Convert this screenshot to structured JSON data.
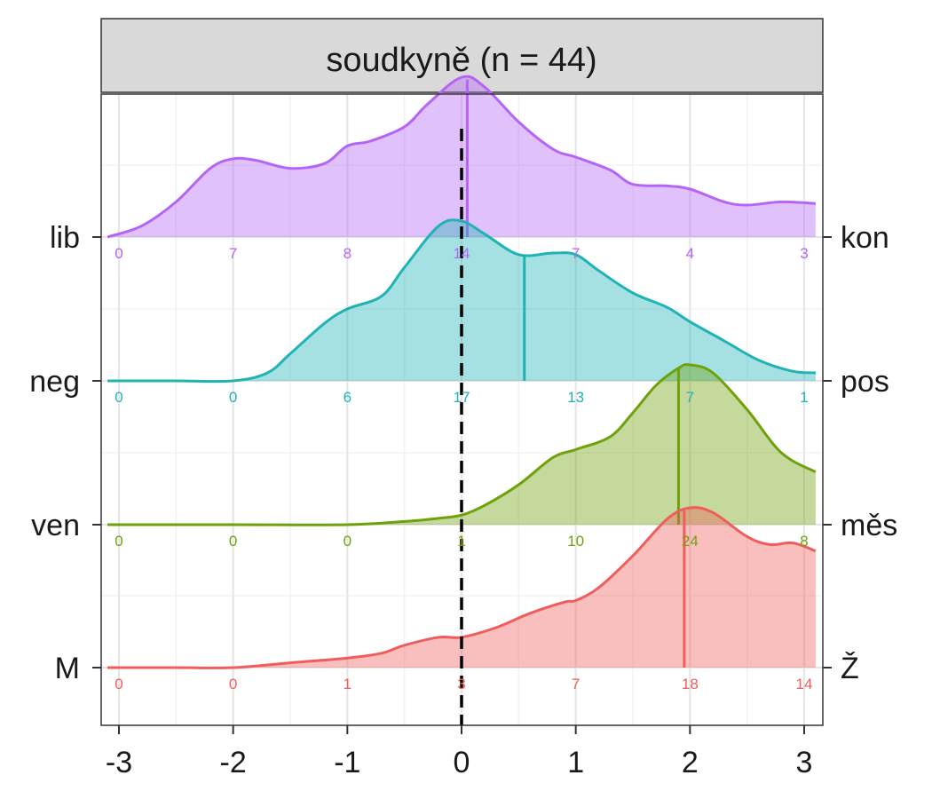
{
  "chart_data": {
    "type": "ridgeline-density",
    "title": "soudkyně (n = 44)",
    "xlabel": "",
    "ylabel": "",
    "xlim": [
      -3.1,
      3.1
    ],
    "xticks": [
      -3,
      -2,
      -1,
      0,
      1,
      2,
      3
    ],
    "xtick_labels": [
      "-3",
      "-2",
      "-1",
      "0",
      "1",
      "2",
      "3"
    ],
    "reference_line_x": 0,
    "grid": true,
    "count_positions": [
      -3,
      -2,
      -1,
      0,
      1,
      2,
      3
    ],
    "rows": [
      {
        "left_label": "lib",
        "right_label": "kon",
        "color": "#B565F5",
        "counts": [
          "0",
          "7",
          "8",
          "14",
          "7",
          "4",
          "3"
        ],
        "mean": 0.05,
        "density_x": [
          -3.1,
          -2.8,
          -2.5,
          -2.2,
          -2.0,
          -1.8,
          -1.5,
          -1.2,
          -1.0,
          -0.8,
          -0.5,
          -0.3,
          0.0,
          0.2,
          0.5,
          0.8,
          1.0,
          1.3,
          1.5,
          1.8,
          2.0,
          2.3,
          2.5,
          2.8,
          3.1
        ],
        "density_y": [
          0.0,
          0.07,
          0.22,
          0.43,
          0.49,
          0.48,
          0.43,
          0.46,
          0.57,
          0.6,
          0.69,
          0.83,
          1.0,
          0.94,
          0.72,
          0.55,
          0.5,
          0.42,
          0.33,
          0.32,
          0.3,
          0.22,
          0.2,
          0.22,
          0.21
        ]
      },
      {
        "left_label": "neg",
        "right_label": "pos",
        "color": "#1FB3B6",
        "counts": [
          "0",
          "0",
          "6",
          "17",
          "13",
          "7",
          "1"
        ],
        "mean": 0.55,
        "density_x": [
          -3.1,
          -2.5,
          -2.0,
          -1.7,
          -1.5,
          -1.2,
          -1.0,
          -0.7,
          -0.5,
          -0.2,
          0.0,
          0.2,
          0.5,
          0.8,
          1.0,
          1.2,
          1.5,
          1.8,
          2.0,
          2.3,
          2.6,
          2.9,
          3.1
        ],
        "density_y": [
          0.0,
          0.0,
          0.0,
          0.05,
          0.17,
          0.36,
          0.45,
          0.53,
          0.71,
          0.97,
          1.0,
          0.92,
          0.79,
          0.8,
          0.79,
          0.69,
          0.55,
          0.46,
          0.37,
          0.25,
          0.13,
          0.06,
          0.05
        ]
      },
      {
        "left_label": "ven",
        "right_label": "měs",
        "color": "#6FA10B",
        "counts": [
          "0",
          "0",
          "0",
          "1",
          "10",
          "24",
          "8"
        ],
        "mean": 1.9,
        "density_x": [
          -3.1,
          -2.0,
          -1.0,
          -0.5,
          -0.2,
          0.0,
          0.2,
          0.5,
          0.8,
          1.0,
          1.3,
          1.5,
          1.7,
          1.9,
          2.0,
          2.2,
          2.5,
          2.8,
          3.1
        ],
        "density_y": [
          0.0,
          0.0,
          0.0,
          0.02,
          0.04,
          0.06,
          0.12,
          0.25,
          0.42,
          0.47,
          0.55,
          0.7,
          0.87,
          0.98,
          1.0,
          0.95,
          0.72,
          0.45,
          0.33
        ]
      },
      {
        "left_label": "M",
        "right_label": "Ž",
        "color": "#F15D5D",
        "counts": [
          "0",
          "0",
          "1",
          "3",
          "7",
          "18",
          "14"
        ],
        "mean": 1.95,
        "density_x": [
          -3.1,
          -2.5,
          -2.0,
          -1.5,
          -1.0,
          -0.7,
          -0.5,
          -0.2,
          0.0,
          0.3,
          0.6,
          0.9,
          1.0,
          1.2,
          1.5,
          1.8,
          2.0,
          2.2,
          2.5,
          2.7,
          2.9,
          3.1
        ],
        "density_y": [
          0.0,
          0.0,
          0.0,
          0.03,
          0.06,
          0.09,
          0.14,
          0.19,
          0.19,
          0.25,
          0.34,
          0.41,
          0.42,
          0.5,
          0.7,
          0.93,
          1.0,
          0.97,
          0.82,
          0.77,
          0.78,
          0.73
        ]
      }
    ]
  }
}
